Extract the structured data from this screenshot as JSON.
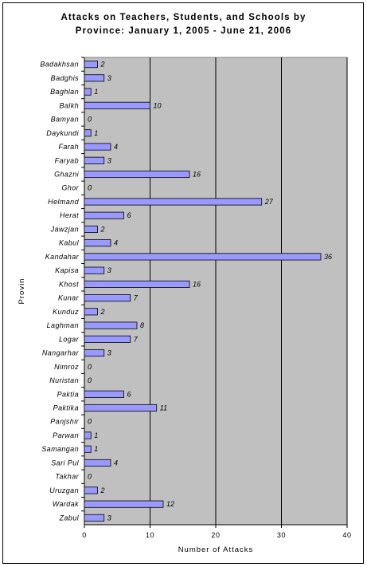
{
  "chart_data": {
    "type": "bar",
    "orientation": "horizontal",
    "title_line1": "Attacks on Teachers, Students, and Schools by",
    "title_line2": "Province: January 1, 2005 - June 21, 2006",
    "xlabel": "Number of Attacks",
    "ylabel": "Provin",
    "xlim": [
      0,
      40
    ],
    "xticks": [
      0,
      10,
      20,
      30,
      40
    ],
    "grid": true,
    "plot_background": "#c0c0c0",
    "bar_color": "#9999ff",
    "categories": [
      "Badakhsan",
      "Badghis",
      "Baghlan",
      "Balkh",
      "Bamyan",
      "Daykundi",
      "Farah",
      "Faryab",
      "Ghazni",
      "Ghor",
      "Helmand",
      "Herat",
      "Jawzjan",
      "Kabul",
      "Kandahar",
      "Kapisa",
      "Khost",
      "Kunar",
      "Kunduz",
      "Laghman",
      "Logar",
      "Nangarhar",
      "Nimroz",
      "Nuristan",
      "Paktia",
      "Paktika",
      "Panjshir",
      "Parwan",
      "Samangan",
      "Sari Pul",
      "Takhar",
      "Uruzgan",
      "Wardak",
      "Zabul"
    ],
    "values": [
      2,
      3,
      1,
      10,
      0,
      1,
      4,
      3,
      16,
      0,
      27,
      6,
      2,
      4,
      36,
      3,
      16,
      7,
      2,
      8,
      7,
      3,
      0,
      0,
      6,
      11,
      0,
      1,
      1,
      4,
      0,
      2,
      12,
      3
    ]
  }
}
